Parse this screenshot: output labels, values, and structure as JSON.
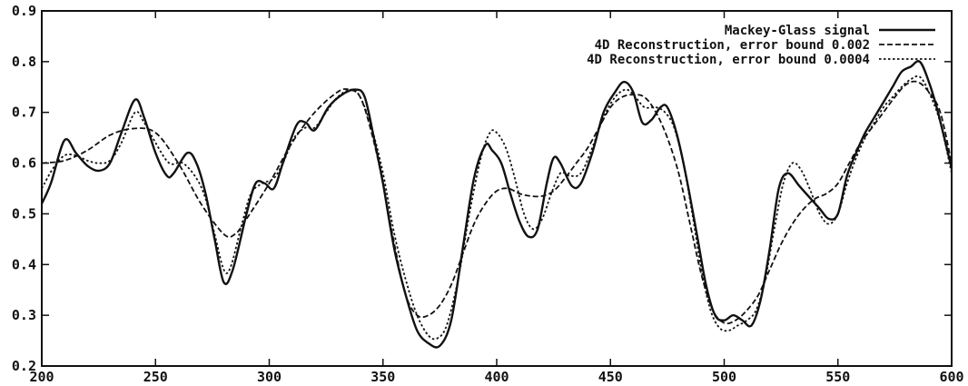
{
  "chart_data": {
    "type": "line",
    "title": "",
    "xlabel": "",
    "ylabel": "",
    "xlim": [
      200,
      600
    ],
    "ylim": [
      0.2,
      0.9
    ],
    "x_ticks": [
      200,
      250,
      300,
      350,
      400,
      450,
      500,
      550,
      600
    ],
    "x_tick_labels": [
      "200",
      "250",
      "300",
      "350",
      "400",
      "450",
      "500",
      "550",
      "600"
    ],
    "y_ticks": [
      0.2,
      0.3,
      0.4,
      0.5,
      0.6,
      0.7,
      0.8,
      0.9
    ],
    "y_tick_labels": [
      "0.2",
      "0.3",
      "0.4",
      "0.5",
      "0.6",
      "0.7",
      "0.8",
      "0.9"
    ],
    "grid": false,
    "legend_position": "top-right",
    "series": [
      {
        "name": "Mackey-Glass signal",
        "style": "solid",
        "points": [
          [
            200,
            0.52
          ],
          [
            204,
            0.56
          ],
          [
            210,
            0.645
          ],
          [
            215,
            0.62
          ],
          [
            220,
            0.595
          ],
          [
            225,
            0.585
          ],
          [
            230,
            0.6
          ],
          [
            235,
            0.66
          ],
          [
            241,
            0.725
          ],
          [
            245,
            0.69
          ],
          [
            250,
            0.62
          ],
          [
            255,
            0.575
          ],
          [
            258,
            0.58
          ],
          [
            264,
            0.62
          ],
          [
            268,
            0.6
          ],
          [
            272,
            0.54
          ],
          [
            276,
            0.45
          ],
          [
            280,
            0.365
          ],
          [
            284,
            0.39
          ],
          [
            290,
            0.5
          ],
          [
            294,
            0.56
          ],
          [
            298,
            0.56
          ],
          [
            302,
            0.55
          ],
          [
            306,
            0.6
          ],
          [
            312,
            0.675
          ],
          [
            316,
            0.68
          ],
          [
            320,
            0.665
          ],
          [
            326,
            0.71
          ],
          [
            332,
            0.735
          ],
          [
            338,
            0.745
          ],
          [
            342,
            0.73
          ],
          [
            346,
            0.65
          ],
          [
            350,
            0.56
          ],
          [
            355,
            0.43
          ],
          [
            360,
            0.34
          ],
          [
            365,
            0.27
          ],
          [
            370,
            0.245
          ],
          [
            375,
            0.24
          ],
          [
            380,
            0.29
          ],
          [
            385,
            0.43
          ],
          [
            390,
            0.57
          ],
          [
            395,
            0.635
          ],
          [
            398,
            0.625
          ],
          [
            402,
            0.6
          ],
          [
            406,
            0.54
          ],
          [
            410,
            0.485
          ],
          [
            414,
            0.455
          ],
          [
            418,
            0.47
          ],
          [
            422,
            0.56
          ],
          [
            425,
            0.61
          ],
          [
            428,
            0.6
          ],
          [
            433,
            0.555
          ],
          [
            437,
            0.56
          ],
          [
            442,
            0.62
          ],
          [
            447,
            0.7
          ],
          [
            452,
            0.74
          ],
          [
            456,
            0.76
          ],
          [
            460,
            0.74
          ],
          [
            464,
            0.68
          ],
          [
            468,
            0.685
          ],
          [
            472,
            0.71
          ],
          [
            475,
            0.71
          ],
          [
            479,
            0.66
          ],
          [
            483,
            0.58
          ],
          [
            488,
            0.46
          ],
          [
            492,
            0.36
          ],
          [
            496,
            0.3
          ],
          [
            500,
            0.29
          ],
          [
            504,
            0.3
          ],
          [
            508,
            0.29
          ],
          [
            512,
            0.28
          ],
          [
            516,
            0.33
          ],
          [
            520,
            0.43
          ],
          [
            524,
            0.55
          ],
          [
            528,
            0.58
          ],
          [
            533,
            0.555
          ],
          [
            538,
            0.53
          ],
          [
            542,
            0.51
          ],
          [
            546,
            0.49
          ],
          [
            550,
            0.5
          ],
          [
            554,
            0.575
          ],
          [
            558,
            0.62
          ],
          [
            562,
            0.66
          ],
          [
            566,
            0.69
          ],
          [
            570,
            0.72
          ],
          [
            574,
            0.75
          ],
          [
            578,
            0.78
          ],
          [
            582,
            0.79
          ],
          [
            586,
            0.8
          ],
          [
            590,
            0.76
          ],
          [
            594,
            0.7
          ],
          [
            600,
            0.59
          ]
        ]
      },
      {
        "name": "4D Reconstruction, error bound  0.002",
        "style": "dashed",
        "points": [
          [
            200,
            0.6
          ],
          [
            210,
            0.605
          ],
          [
            220,
            0.625
          ],
          [
            230,
            0.655
          ],
          [
            240,
            0.668
          ],
          [
            250,
            0.66
          ],
          [
            260,
            0.6
          ],
          [
            270,
            0.52
          ],
          [
            280,
            0.46
          ],
          [
            285,
            0.46
          ],
          [
            290,
            0.49
          ],
          [
            300,
            0.56
          ],
          [
            310,
            0.64
          ],
          [
            320,
            0.7
          ],
          [
            330,
            0.74
          ],
          [
            335,
            0.745
          ],
          [
            340,
            0.73
          ],
          [
            345,
            0.66
          ],
          [
            350,
            0.56
          ],
          [
            355,
            0.44
          ],
          [
            360,
            0.34
          ],
          [
            365,
            0.3
          ],
          [
            370,
            0.3
          ],
          [
            375,
            0.32
          ],
          [
            380,
            0.36
          ],
          [
            385,
            0.42
          ],
          [
            390,
            0.48
          ],
          [
            395,
            0.52
          ],
          [
            400,
            0.545
          ],
          [
            405,
            0.55
          ],
          [
            410,
            0.54
          ],
          [
            415,
            0.535
          ],
          [
            420,
            0.535
          ],
          [
            425,
            0.545
          ],
          [
            430,
            0.57
          ],
          [
            435,
            0.6
          ],
          [
            440,
            0.63
          ],
          [
            445,
            0.67
          ],
          [
            450,
            0.71
          ],
          [
            455,
            0.73
          ],
          [
            460,
            0.735
          ],
          [
            465,
            0.73
          ],
          [
            470,
            0.7
          ],
          [
            475,
            0.65
          ],
          [
            480,
            0.58
          ],
          [
            485,
            0.48
          ],
          [
            490,
            0.38
          ],
          [
            495,
            0.31
          ],
          [
            500,
            0.285
          ],
          [
            505,
            0.29
          ],
          [
            510,
            0.31
          ],
          [
            515,
            0.34
          ],
          [
            520,
            0.39
          ],
          [
            525,
            0.44
          ],
          [
            530,
            0.48
          ],
          [
            535,
            0.51
          ],
          [
            540,
            0.53
          ],
          [
            545,
            0.54
          ],
          [
            550,
            0.56
          ],
          [
            555,
            0.6
          ],
          [
            560,
            0.64
          ],
          [
            565,
            0.67
          ],
          [
            570,
            0.7
          ],
          [
            575,
            0.73
          ],
          [
            580,
            0.755
          ],
          [
            585,
            0.76
          ],
          [
            590,
            0.74
          ],
          [
            595,
            0.7
          ],
          [
            600,
            0.6
          ]
        ]
      },
      {
        "name": "4D Reconstruction, error bound 0.0004",
        "style": "dotted",
        "points": [
          [
            200,
            0.55
          ],
          [
            205,
            0.59
          ],
          [
            210,
            0.615
          ],
          [
            215,
            0.615
          ],
          [
            220,
            0.605
          ],
          [
            225,
            0.6
          ],
          [
            230,
            0.605
          ],
          [
            235,
            0.64
          ],
          [
            241,
            0.7
          ],
          [
            245,
            0.68
          ],
          [
            250,
            0.64
          ],
          [
            256,
            0.6
          ],
          [
            262,
            0.6
          ],
          [
            268,
            0.57
          ],
          [
            272,
            0.53
          ],
          [
            276,
            0.46
          ],
          [
            280,
            0.39
          ],
          [
            283,
            0.395
          ],
          [
            288,
            0.48
          ],
          [
            292,
            0.54
          ],
          [
            297,
            0.56
          ],
          [
            302,
            0.57
          ],
          [
            306,
            0.6
          ],
          [
            311,
            0.65
          ],
          [
            316,
            0.67
          ],
          [
            320,
            0.67
          ],
          [
            325,
            0.7
          ],
          [
            330,
            0.73
          ],
          [
            336,
            0.745
          ],
          [
            340,
            0.73
          ],
          [
            345,
            0.67
          ],
          [
            350,
            0.58
          ],
          [
            355,
            0.46
          ],
          [
            360,
            0.37
          ],
          [
            365,
            0.3
          ],
          [
            370,
            0.26
          ],
          [
            374,
            0.255
          ],
          [
            378,
            0.28
          ],
          [
            383,
            0.37
          ],
          [
            388,
            0.5
          ],
          [
            393,
            0.61
          ],
          [
            397,
            0.66
          ],
          [
            400,
            0.66
          ],
          [
            404,
            0.63
          ],
          [
            408,
            0.57
          ],
          [
            412,
            0.5
          ],
          [
            416,
            0.47
          ],
          [
            420,
            0.49
          ],
          [
            424,
            0.54
          ],
          [
            428,
            0.58
          ],
          [
            432,
            0.575
          ],
          [
            437,
            0.58
          ],
          [
            442,
            0.63
          ],
          [
            447,
            0.69
          ],
          [
            452,
            0.73
          ],
          [
            457,
            0.745
          ],
          [
            461,
            0.73
          ],
          [
            465,
            0.71
          ],
          [
            470,
            0.71
          ],
          [
            474,
            0.7
          ],
          [
            478,
            0.67
          ],
          [
            482,
            0.6
          ],
          [
            486,
            0.5
          ],
          [
            490,
            0.39
          ],
          [
            494,
            0.31
          ],
          [
            498,
            0.275
          ],
          [
            502,
            0.27
          ],
          [
            506,
            0.28
          ],
          [
            510,
            0.29
          ],
          [
            514,
            0.31
          ],
          [
            518,
            0.37
          ],
          [
            522,
            0.47
          ],
          [
            526,
            0.56
          ],
          [
            530,
            0.6
          ],
          [
            534,
            0.585
          ],
          [
            538,
            0.545
          ],
          [
            542,
            0.5
          ],
          [
            546,
            0.48
          ],
          [
            550,
            0.5
          ],
          [
            554,
            0.56
          ],
          [
            558,
            0.61
          ],
          [
            562,
            0.65
          ],
          [
            566,
            0.68
          ],
          [
            570,
            0.71
          ],
          [
            574,
            0.73
          ],
          [
            578,
            0.75
          ],
          [
            582,
            0.765
          ],
          [
            586,
            0.77
          ],
          [
            590,
            0.74
          ],
          [
            595,
            0.68
          ],
          [
            600,
            0.58
          ]
        ]
      }
    ]
  }
}
